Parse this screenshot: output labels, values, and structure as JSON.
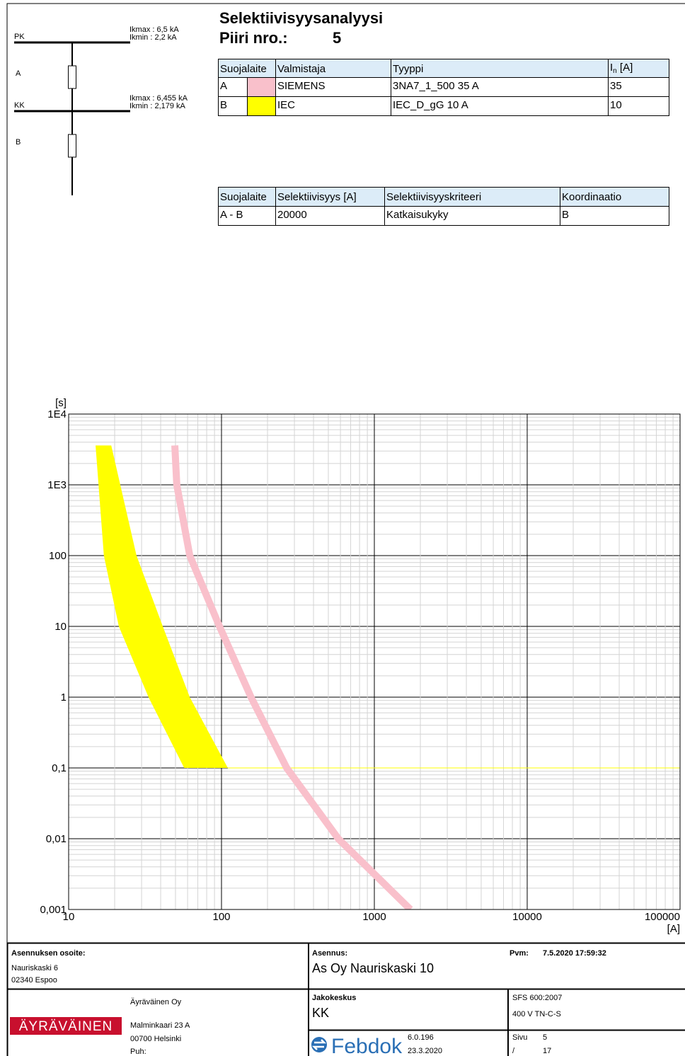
{
  "diagram": {
    "buses": [
      {
        "label": "PK",
        "ikmax": "Ikmax : 6,5 kA",
        "ikmin": "Ikmin : 2,2 kA"
      },
      {
        "label": "KK",
        "ikmax": "Ikmax : 6,455 kA",
        "ikmin": "Ikmin : 2,179 kA"
      }
    ],
    "devices": [
      "A",
      "B"
    ]
  },
  "header": {
    "title": "Selektiivisyysanalyysi",
    "circuit_label": "Piiri nro.:",
    "circuit": "5"
  },
  "devices_table": {
    "headers": [
      "Suojalaite",
      "Valmistaja",
      "Tyyppi",
      {
        "main": "I",
        "sub": "n",
        "rest": " [A]"
      }
    ],
    "rows": [
      {
        "device": "A",
        "color": "#f9c0cb",
        "manufacturer": "SIEMENS",
        "type": "3NA7_1_500 35 A",
        "rating": 35
      },
      {
        "device": "B",
        "color": "#ffff00",
        "manufacturer": "IEC",
        "type": "IEC_D_gG 10 A",
        "rating": 10
      }
    ]
  },
  "selectivity_table": {
    "headers": [
      "Suojalaite",
      "Selektiivisyys [A]",
      "Selektiivisyyskriteeri",
      "Koordinaatio"
    ],
    "rows": [
      [
        "A - B",
        20000,
        "Katkaisukyky",
        "B"
      ]
    ]
  },
  "chart_data": {
    "type": "line",
    "xlabel": "[A]",
    "ylabel": "[s]",
    "xscale": "log",
    "yscale": "log",
    "xlim": [
      10,
      100000
    ],
    "ylim": [
      0.001,
      10000
    ],
    "xticks": [
      10,
      100,
      1000,
      10000,
      100000
    ],
    "yticks": [
      {
        "value": 0.001,
        "label": "0,001"
      },
      {
        "value": 0.01,
        "label": "0,01"
      },
      {
        "value": 0.1,
        "label": "0,1"
      },
      1,
      10,
      100,
      {
        "value": 1000,
        "label": "1E3"
      },
      {
        "value": 10000,
        "label": "1E4"
      }
    ],
    "grid": true,
    "minor_grid": true,
    "series": [
      {
        "type": "band",
        "color": "#ffff00",
        "y": [
          3600,
          100,
          10,
          1,
          0.1
        ],
        "x_low": [
          15,
          17,
          21.3,
          33.3,
          57
        ],
        "x_high": [
          19,
          27.8,
          41.3,
          62,
          110
        ]
      },
      {
        "type": "line",
        "color": "#ffff00",
        "width": 1,
        "x": [
          110,
          100000
        ],
        "values": [
          0.1,
          0.1
        ]
      },
      {
        "type": "line",
        "color": "#f9c0cb",
        "width": 10,
        "x": [
          49.5,
          51,
          62,
          97,
          156,
          267,
          581,
          1722
        ],
        "values": [
          3600,
          1000,
          100,
          10,
          1,
          0.1,
          0.01,
          0.001
        ]
      }
    ]
  },
  "footer": {
    "address": {
      "label": "Asennuksen osoite:",
      "lines": [
        "Nauriskaski 6",
        "02340 Espoo"
      ]
    },
    "company": {
      "logo": "ÄYRÄVÄINEN",
      "name": "Äyräväinen Oy",
      "lines": [
        "Malminkaari 23 A",
        "00700 Helsinki",
        "Puh:"
      ]
    },
    "installation": {
      "label": "Asennus:",
      "value": "As Oy Nauriskaski 10"
    },
    "date": {
      "label": "Pvm:",
      "value": "7.5.2020 17:59:32"
    },
    "distribution_board": {
      "label": "Jakokeskus",
      "value": "KK"
    },
    "standard": "SFS 600:2007",
    "network": "400 V TN-C-S",
    "software": {
      "name": "Febdok",
      "version": "6.0.196",
      "date": "23.3.2020"
    },
    "page": {
      "label": "Sivu",
      "number": 5,
      "separator": "/",
      "total": 17
    }
  }
}
